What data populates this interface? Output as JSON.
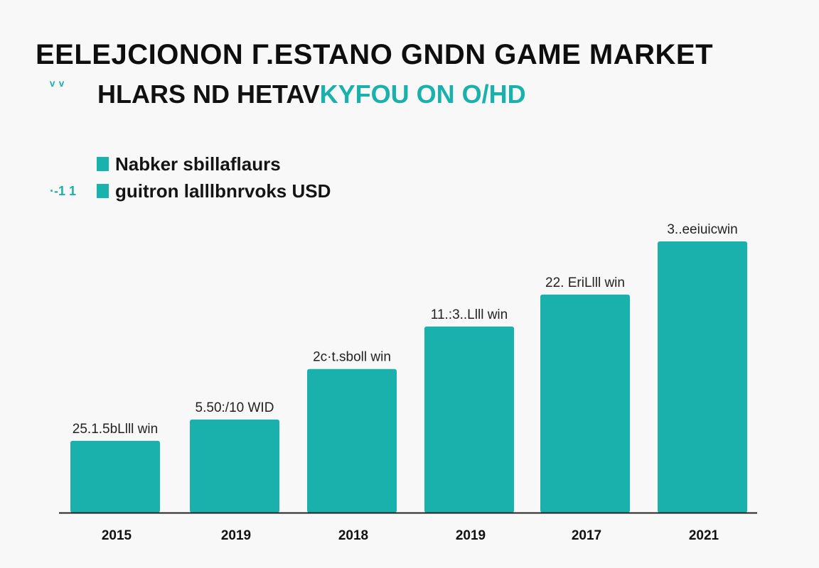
{
  "header": {
    "title": "EELEJCIONON Γ.ESTANO GNDN GAME MARKET",
    "subtitle_mark": "ᵛ ᵛ",
    "subtitle_dark": "HLARS ND  HETAV",
    "subtitle_teal_start": "HLA",
    "subtitle_accent": "KYFOU ON O/HD"
  },
  "legend": {
    "items": [
      {
        "marker": "",
        "label": "Nabker sbillaflaurs"
      },
      {
        "marker": "·‑1 1",
        "label": "guitron lalllbnrvoks USD"
      }
    ]
  },
  "colors": {
    "bar": "#1ab1ad",
    "accent": "#1ab1ad",
    "axis": "#222222"
  },
  "chart_data": {
    "type": "bar",
    "categories": [
      "2015",
      "2019",
      "2018",
      "2019",
      "2017",
      "2021"
    ],
    "values": [
      27,
      35,
      54,
      70,
      82,
      102
    ],
    "data_labels": [
      "25.1.5bLlll win",
      "5.50:/10 WID",
      "2c·t.sboll win",
      "11.:3..Llll win",
      "22. EriLlll win",
      "3..eeiuicwin"
    ],
    "ylim": [
      0,
      110
    ]
  }
}
